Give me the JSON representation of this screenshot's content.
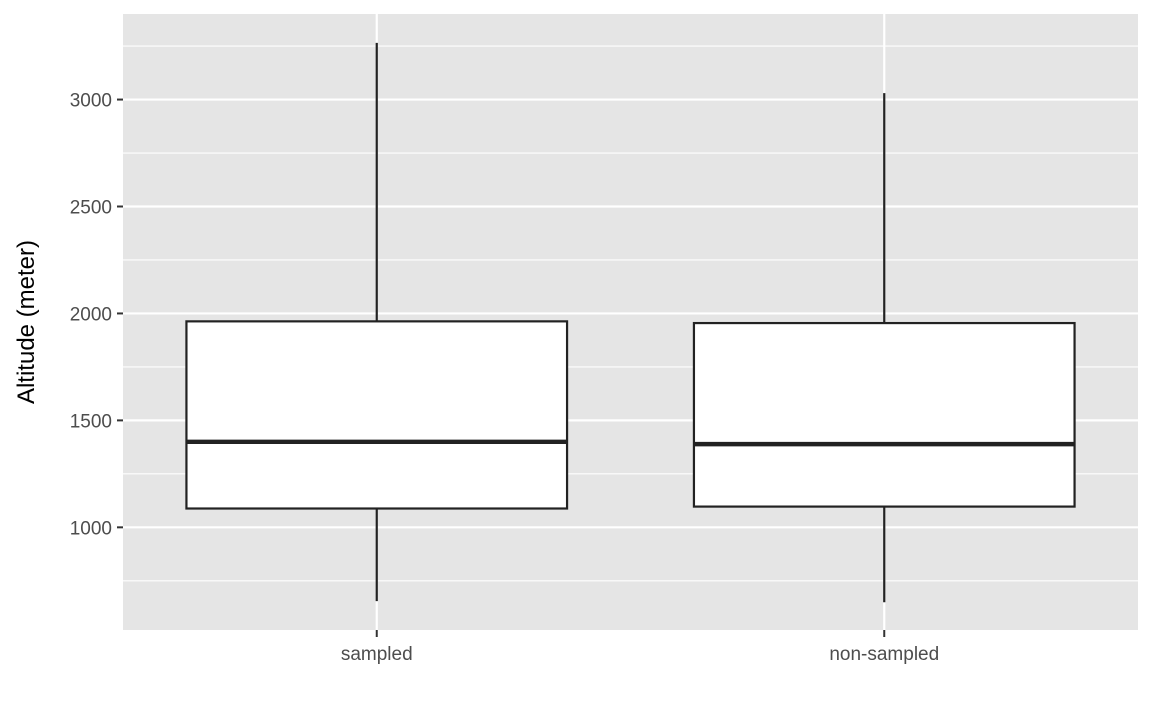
{
  "chart_data": {
    "type": "boxplot",
    "title": "",
    "xlabel": "",
    "ylabel": "Altitude (meter)",
    "ylim": [
      520,
      3400
    ],
    "yticks": [
      1000,
      1500,
      2000,
      2500,
      3000
    ],
    "grid": true,
    "legend": "none",
    "categories": [
      "sampled",
      "non-sampled"
    ],
    "boxes": [
      {
        "category": "sampled",
        "min": 655,
        "q1": 1088,
        "median": 1400,
        "q3": 1963,
        "max": 3265
      },
      {
        "category": "non-sampled",
        "min": 650,
        "q1": 1097,
        "median": 1389,
        "q3": 1955,
        "max": 3030
      }
    ]
  },
  "colors": {
    "panel_background": "#e5e5e5",
    "grid": "#ffffff",
    "box_fill": "#ffffff",
    "box_stroke": "#222222",
    "tick": "#333333"
  }
}
